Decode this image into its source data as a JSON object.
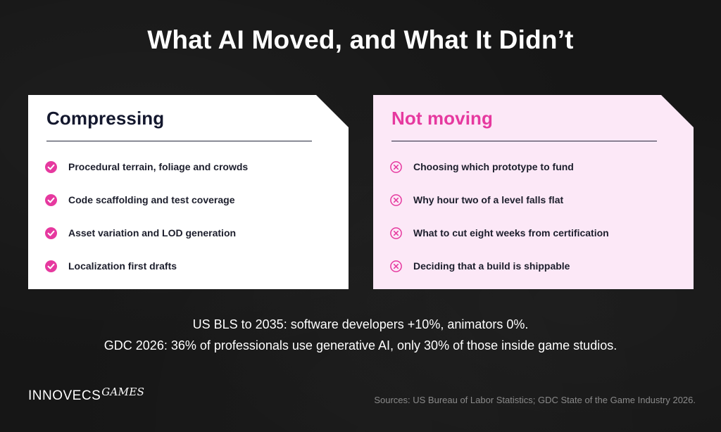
{
  "title": "What AI Moved, and What It Didn’t",
  "colors": {
    "background": "#161616",
    "accent": "#e6399f",
    "left_card": "#ffffff",
    "right_card": "#fce8f7",
    "heading_dark": "#14182e"
  },
  "left_card": {
    "heading": "Compressing",
    "icon": "check-circle-icon",
    "items": [
      {
        "label": "Procedural terrain, foliage and crowds"
      },
      {
        "label": "Code scaffolding and test coverage"
      },
      {
        "label": "Asset variation and LOD generation"
      },
      {
        "label": "Localization first drafts"
      }
    ]
  },
  "right_card": {
    "heading": "Not moving",
    "icon": "x-circle-icon",
    "items": [
      {
        "label": "Choosing which prototype to fund"
      },
      {
        "label": "Why hour two of a level falls flat"
      },
      {
        "label": "What to cut eight weeks from certification"
      },
      {
        "label": "Deciding that a build is shippable"
      }
    ]
  },
  "stats": {
    "line1": "US BLS to 2035: software developers +10%, animators 0%.",
    "line2": "GDC 2026: 36% of professionals use generative AI, only 30% of those inside game studios."
  },
  "logo": {
    "main": "INNOVECS",
    "script": "GAMES"
  },
  "sources": "Sources: US Bureau of Labor Statistics; GDC State of the Game Industry 2026."
}
